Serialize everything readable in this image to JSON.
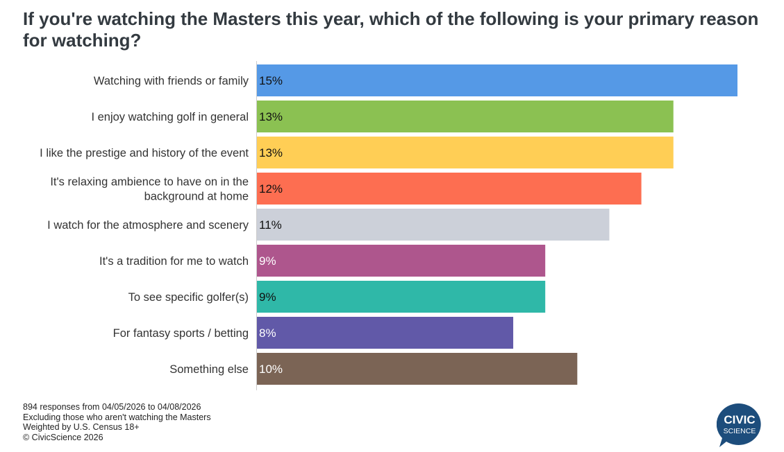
{
  "chart_data": {
    "type": "bar",
    "orientation": "horizontal",
    "title": "If you're watching the Masters this year, which of the following is your primary reason for watching?",
    "categories": [
      [
        "Watching with friends or family"
      ],
      [
        "I enjoy watching golf in general"
      ],
      [
        "I like the prestige and history of the event"
      ],
      [
        "It's relaxing ambience to have on in the",
        "background at home"
      ],
      [
        "I watch for the atmosphere and scenery"
      ],
      [
        "It's a tradition for me to watch"
      ],
      [
        "To see specific golfer(s)"
      ],
      [
        "For fantasy sports / betting"
      ],
      [
        "Something else"
      ]
    ],
    "values": [
      15,
      13,
      13,
      12,
      11,
      9,
      9,
      8,
      10
    ],
    "labels": [
      "15%",
      "13%",
      "13%",
      "12%",
      "11%",
      "9%",
      "9%",
      "8%",
      "10%"
    ],
    "colors": [
      "#5599e6",
      "#8bc152",
      "#ffce55",
      "#fd6e51",
      "#ccd0d9",
      "#ae568d",
      "#2fb8a8",
      "#6159a8",
      "#7b6455"
    ],
    "label_colors": [
      "#111111",
      "#111111",
      "#111111",
      "#111111",
      "#111111",
      "#ffffff",
      "#111111",
      "#ffffff",
      "#ffffff"
    ],
    "xlim": [
      0,
      15
    ],
    "xlabel": "",
    "ylabel": "",
    "grid": false
  },
  "footer": {
    "lines": [
      "894 responses from 04/05/2026 to 04/08/2026",
      "Excluding those who aren't watching the Masters",
      "Weighted by U.S. Census 18+",
      "© CivicScience 2026"
    ]
  },
  "logo": {
    "line1": "CIVIC",
    "line2": "SCIENCE",
    "color": "#1d4d7c"
  }
}
